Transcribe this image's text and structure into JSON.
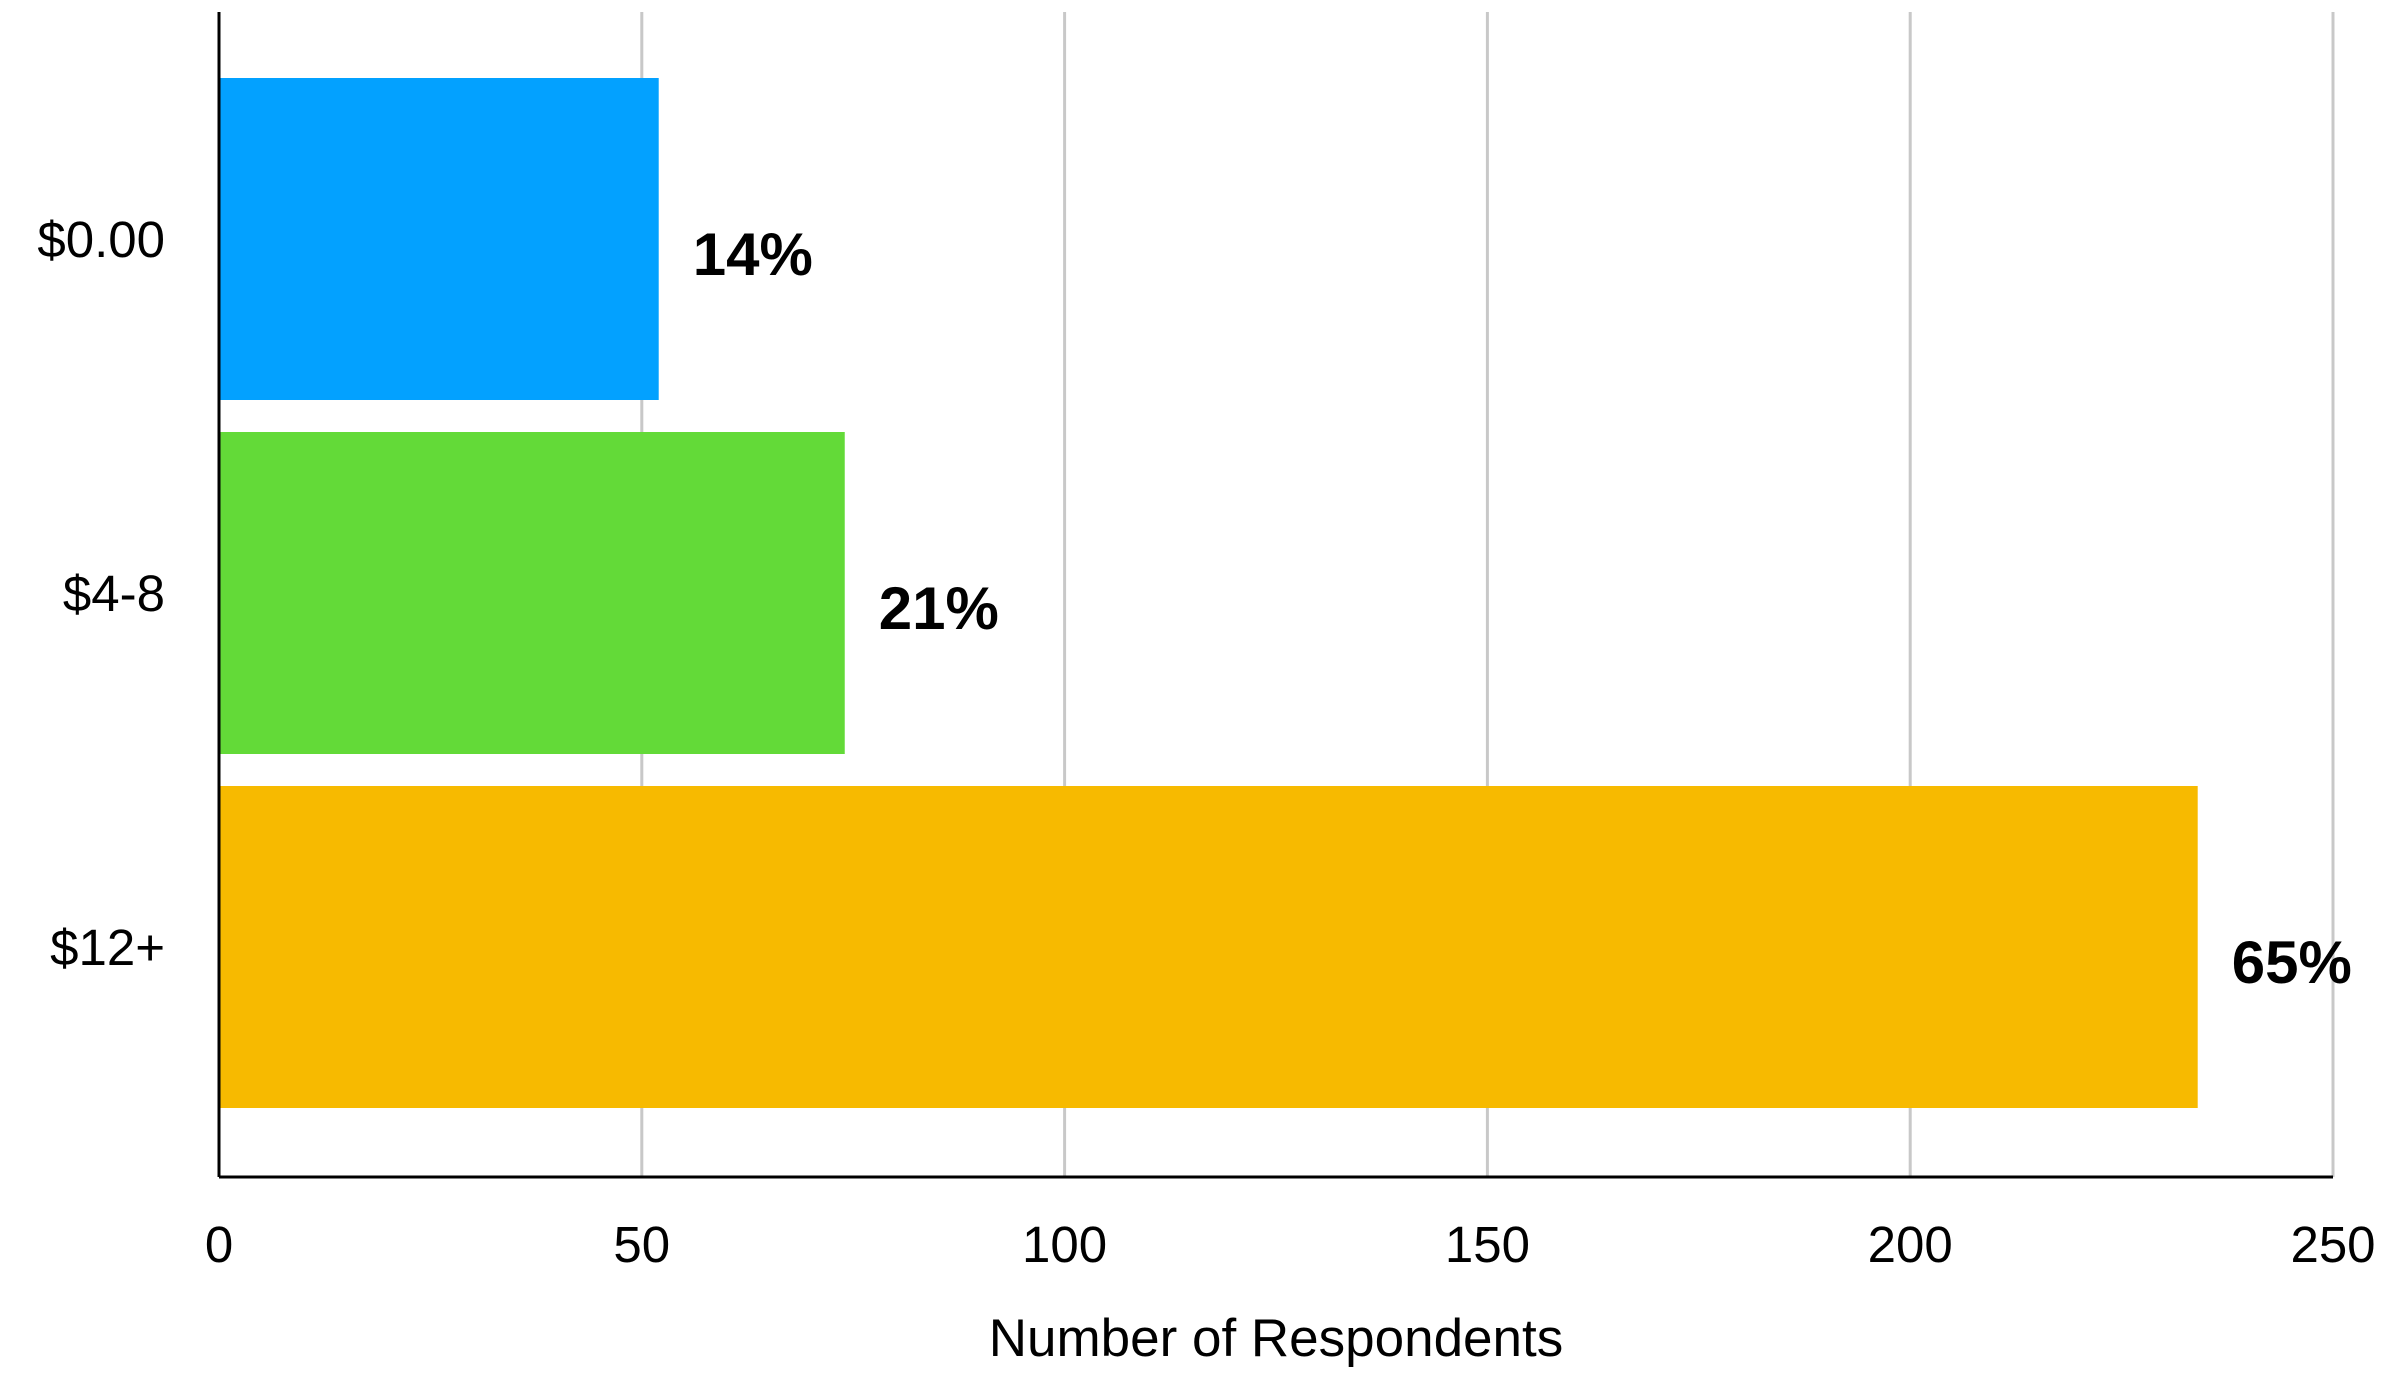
{
  "chart_data": {
    "type": "bar",
    "orientation": "horizontal",
    "categories": [
      "$0.00",
      "$4-8",
      "$12+"
    ],
    "values": [
      52,
      74,
      234
    ],
    "data_labels": [
      "14%",
      "21%",
      "65%"
    ],
    "colors": [
      "#03A1FF",
      "#63DA38",
      "#F7BA00"
    ],
    "title": "",
    "xlabel": "Number of Respondents",
    "ylabel": "",
    "xlim": [
      0,
      250
    ],
    "xticks": [
      0,
      50,
      100,
      150,
      200,
      250
    ],
    "xtick_labels": [
      "0",
      "50",
      "100",
      "150",
      "200",
      "250"
    ],
    "grid": "vertical",
    "legend": "none"
  }
}
